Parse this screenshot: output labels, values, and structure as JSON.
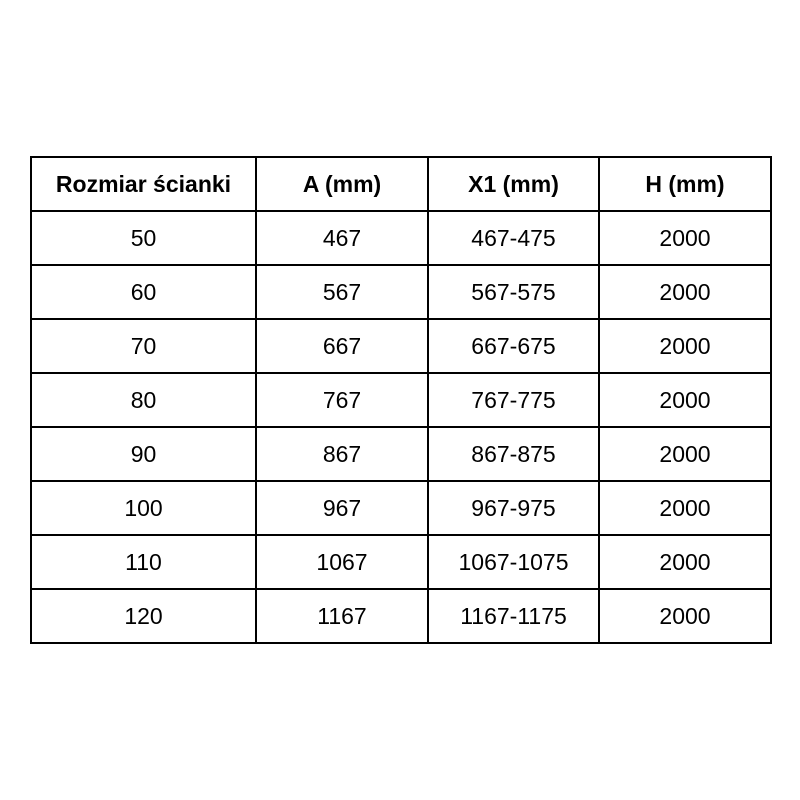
{
  "table": {
    "headers": [
      "Rozmiar ścianki",
      "A (mm)",
      "X1 (mm)",
      "H (mm)"
    ],
    "rows": [
      [
        "50",
        "467",
        "467-475",
        "2000"
      ],
      [
        "60",
        "567",
        "567-575",
        "2000"
      ],
      [
        "70",
        "667",
        "667-675",
        "2000"
      ],
      [
        "80",
        "767",
        "767-775",
        "2000"
      ],
      [
        "90",
        "867",
        "867-875",
        "2000"
      ],
      [
        "100",
        "967",
        "967-975",
        "2000"
      ],
      [
        "110",
        "1067",
        "1067-1075",
        "2000"
      ],
      [
        "120",
        "1167",
        "1167-1175",
        "2000"
      ]
    ],
    "border_color": "#000000",
    "text_color": "#000000",
    "background_color": "#ffffff"
  }
}
